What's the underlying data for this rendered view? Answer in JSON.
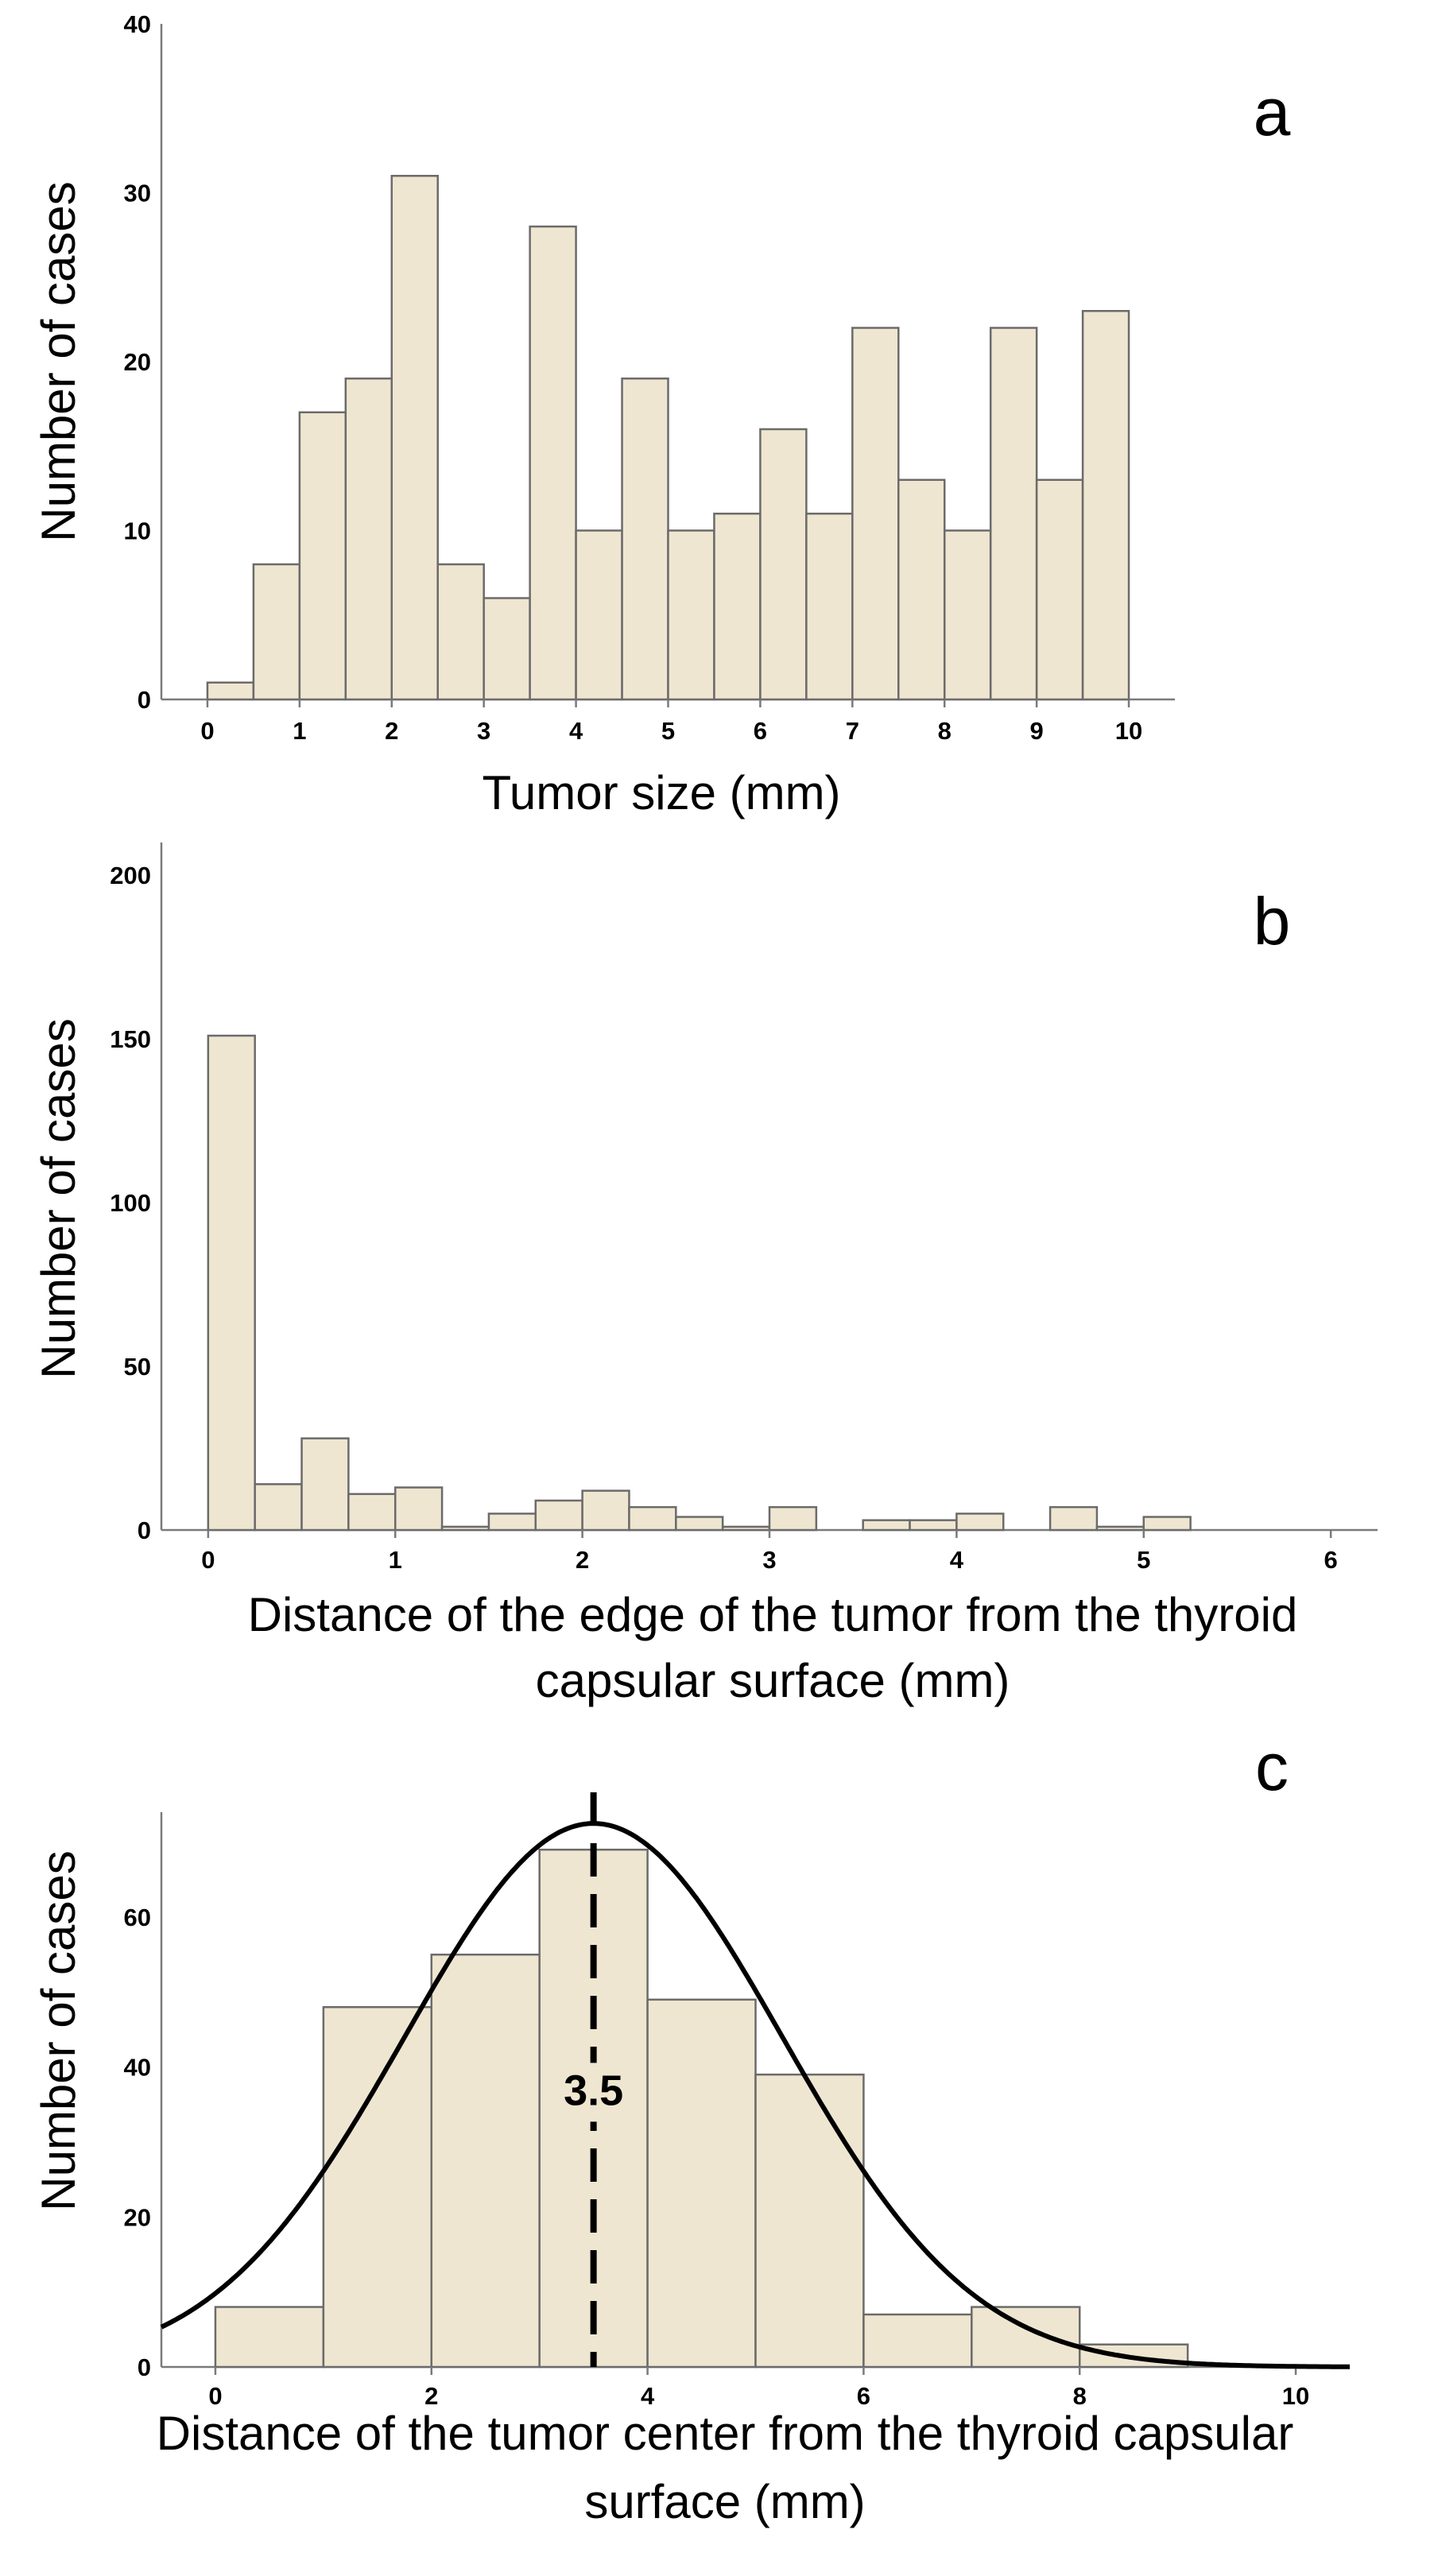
{
  "chart_data": [
    {
      "type": "bar",
      "panel": "a",
      "title": "",
      "xlabel": "Tumor size (mm)",
      "ylabel": "Number of cases",
      "xlim": [
        -0.5,
        10.5
      ],
      "ylim": [
        0,
        40
      ],
      "xticks": [
        0,
        1,
        2,
        3,
        4,
        5,
        6,
        7,
        8,
        9,
        10
      ],
      "yticks": [
        0,
        10,
        20,
        30,
        40
      ],
      "bin_width": 0.5,
      "bins": [
        0,
        0.5,
        1,
        1.5,
        2,
        2.5,
        3,
        3.5,
        4,
        4.5,
        5,
        5.5,
        6,
        6.5,
        7,
        7.5,
        8,
        8.5,
        9,
        9.5
      ],
      "values": [
        1,
        8,
        17,
        19,
        31,
        8,
        6,
        28,
        10,
        19,
        10,
        11,
        16,
        11,
        22,
        13,
        10,
        22,
        13,
        23
      ]
    },
    {
      "type": "bar",
      "panel": "b",
      "title": "",
      "xlabel": "Distance of the edge of the tumor from the thyroid capsular surface (mm)",
      "xlabel_lines": [
        "Distance of the edge of the tumor from the thyroid",
        "capsular surface (mm)"
      ],
      "ylabel": "Number of cases",
      "xlim": [
        -0.25,
        6.25
      ],
      "ylim": [
        0,
        210
      ],
      "xticks": [
        0,
        1,
        2,
        3,
        4,
        5,
        6
      ],
      "yticks": [
        0,
        50,
        100,
        150,
        200
      ],
      "bin_width": 0.25,
      "bins": [
        0,
        0.25,
        0.5,
        0.75,
        1.0,
        1.25,
        1.5,
        1.75,
        2.0,
        2.25,
        2.5,
        2.75,
        3.0,
        3.5,
        3.75,
        4.0,
        4.5,
        4.75,
        5.0
      ],
      "values": [
        151,
        14,
        28,
        11,
        13,
        1,
        5,
        9,
        12,
        7,
        4,
        1,
        7,
        3,
        3,
        5,
        7,
        1,
        4
      ]
    },
    {
      "type": "bar",
      "panel": "c",
      "title": "",
      "xlabel": "Distance of the tumor center from the thyroid capsular surface (mm)",
      "xlabel_lines": [
        "Distance of the tumor center from the thyroid capsular",
        "surface (mm)"
      ],
      "ylabel": "Number of cases",
      "xlim": [
        -0.5,
        10.5
      ],
      "ylim": [
        0,
        74
      ],
      "xticks": [
        0,
        2,
        4,
        6,
        8,
        10
      ],
      "yticks": [
        0,
        20,
        40,
        60
      ],
      "bin_width": 1,
      "bins": [
        0,
        1,
        2,
        3,
        4,
        5,
        6,
        7,
        8
      ],
      "values": [
        8,
        48,
        55,
        69,
        49,
        39,
        7,
        8,
        3
      ],
      "normal_curve": {
        "mean": 3.5,
        "sd": 1.75,
        "peak": 72.5
      },
      "mean_line": 3.5,
      "annotation": "3.5"
    }
  ]
}
